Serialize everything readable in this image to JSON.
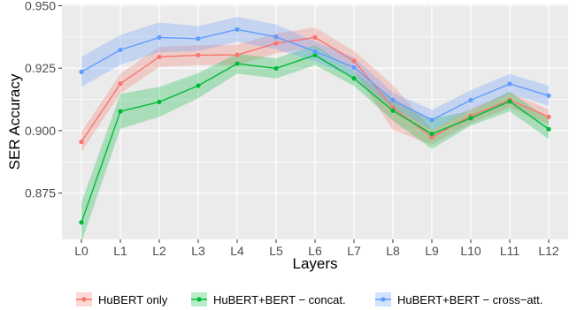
{
  "chart_data": {
    "type": "line",
    "title": "",
    "xlabel": "Layers",
    "ylabel": "SER Accuracy",
    "categories": [
      "L0",
      "L1",
      "L2",
      "L3",
      "L4",
      "L5",
      "L6",
      "L7",
      "L8",
      "L9",
      "L10",
      "L11",
      "L12"
    ],
    "ylim": [
      0.8565,
      0.9505
    ],
    "yticks": [
      0.875,
      0.9,
      0.925,
      0.95
    ],
    "ytick_labels": [
      "0.875",
      "0.900",
      "0.925",
      "0.950"
    ],
    "grid": true,
    "background": "#ebebeb",
    "legend_position": "bottom",
    "series": [
      {
        "name": "HuBERT only",
        "color": "#F8766D",
        "values": [
          0.8955,
          0.9188,
          0.9295,
          0.9302,
          0.9303,
          0.9349,
          0.9373,
          0.9279,
          0.9092,
          0.8974,
          0.9059,
          0.9122,
          0.9055
        ],
        "band_halfwidth": [
          0.004,
          0.004,
          0.004,
          0.004,
          0.004,
          0.004,
          0.004,
          0.004,
          0.009,
          0.003,
          0.003,
          0.003,
          0.003
        ]
      },
      {
        "name": "HuBERT+BERT − concat.",
        "color": "#00BA38",
        "values": [
          0.8633,
          0.9077,
          0.9115,
          0.918,
          0.9268,
          0.9249,
          0.9302,
          0.9209,
          0.908,
          0.8987,
          0.905,
          0.9117,
          0.9006
        ],
        "band_halfwidth": [
          0.008,
          0.007,
          0.006,
          0.005,
          0.004,
          0.004,
          0.004,
          0.003,
          0.004,
          0.006,
          0.003,
          0.004,
          0.004
        ]
      },
      {
        "name": "HuBERT+BERT − cross−att.",
        "color": "#619CFF",
        "values": [
          0.9235,
          0.9323,
          0.9373,
          0.9368,
          0.9405,
          0.9375,
          0.9317,
          0.9253,
          0.9122,
          0.9043,
          0.9122,
          0.9187,
          0.914
        ],
        "band_halfwidth": [
          0.006,
          0.006,
          0.006,
          0.005,
          0.005,
          0.005,
          0.004,
          0.004,
          0.003,
          0.004,
          0.004,
          0.004,
          0.004
        ]
      }
    ]
  }
}
